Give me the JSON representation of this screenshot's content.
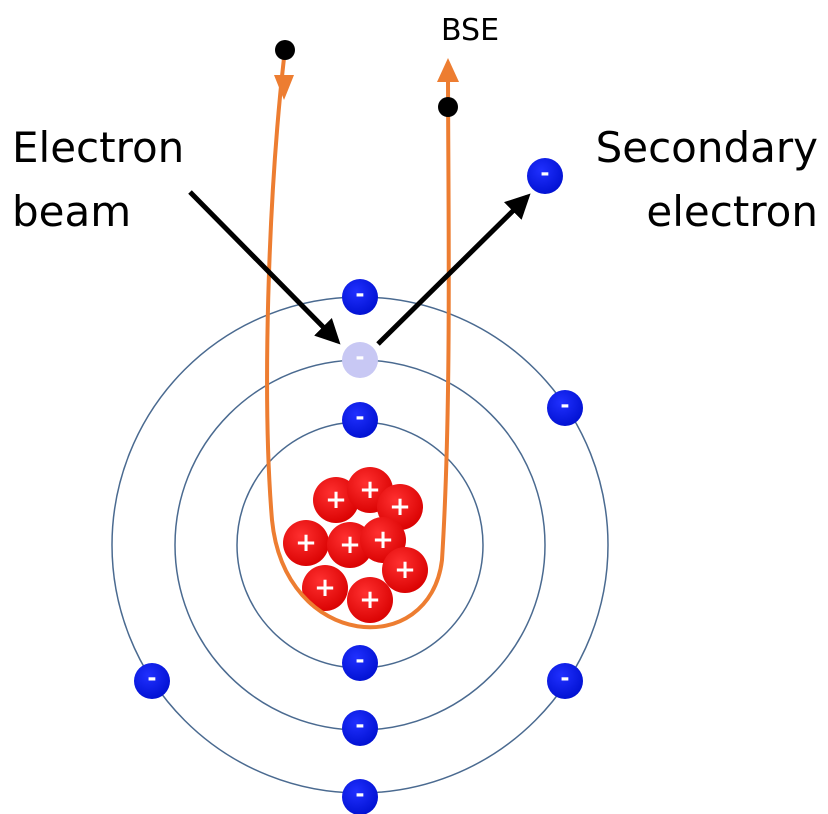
{
  "labels": {
    "bse": "BSE",
    "electron_beam": [
      "Electron",
      "beam"
    ],
    "secondary_electron": [
      "Secondary",
      "electron"
    ]
  },
  "signs": {
    "proton": "+",
    "electron": "-"
  }
}
